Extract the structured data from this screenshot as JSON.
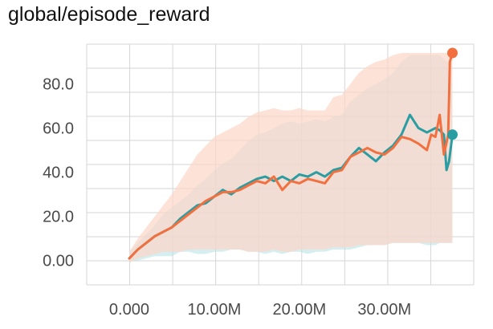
{
  "chart_data": {
    "type": "line",
    "title": "global/episode_reward",
    "xlabel": "",
    "ylabel": "",
    "xlim": [
      -5000000,
      40500000
    ],
    "ylim": [
      -11,
      98
    ],
    "x_ticks": [
      0,
      10000000,
      20000000,
      30000000
    ],
    "x_tick_labels": [
      "0.000",
      "10.00M",
      "20.00M",
      "30.00M"
    ],
    "y_ticks": [
      0,
      20,
      40,
      60,
      80
    ],
    "y_tick_labels": [
      "0.00",
      "20.0",
      "40.0",
      "60.0",
      "80.0"
    ],
    "grid": true,
    "colors": {
      "teal": "#2a9da3",
      "teal_light": "#b2e2e6",
      "orange": "#f2703f",
      "orange_light": "#fcd5c8"
    },
    "series": [
      {
        "color": "#2a9da3",
        "band_color": "#b2e2e6",
        "x": [
          0,
          500000,
          1000000,
          2000000,
          3000000,
          4000000,
          5000000,
          6000000,
          7000000,
          8000000,
          9000000,
          10000000,
          11000000,
          12000000,
          13000000,
          14000000,
          15000000,
          16000000,
          17000000,
          18000000,
          19000000,
          20000000,
          21000000,
          22000000,
          23000000,
          24000000,
          25000000,
          26000000,
          27000000,
          28000000,
          29000000,
          30000000,
          31000000,
          32000000,
          33000000,
          34000000,
          35000000,
          36000000,
          36500000,
          37000000,
          37300000,
          37600000,
          38000000
        ],
        "y": [
          1,
          3,
          5,
          8,
          11,
          13,
          15,
          19,
          22,
          25,
          26,
          29,
          32,
          30,
          33,
          35,
          37,
          38,
          36,
          38,
          36,
          39,
          38,
          40,
          38,
          41,
          42,
          47,
          51,
          48,
          45,
          49,
          52,
          57,
          66,
          60,
          58,
          60,
          59,
          57,
          41,
          45,
          57
        ],
        "band_low": [
          -1,
          0,
          0,
          1,
          2,
          2,
          2,
          4,
          4,
          3,
          3,
          4,
          4,
          5,
          5,
          4,
          4,
          3,
          4,
          3,
          4,
          4,
          3,
          4,
          4,
          5,
          5,
          5,
          6,
          7,
          7,
          7,
          8,
          8,
          8,
          8,
          7,
          7,
          8,
          8,
          8,
          8,
          8
        ],
        "band_high": [
          4,
          6,
          8,
          12,
          16,
          21,
          24,
          27,
          30,
          34,
          37,
          41,
          44,
          46,
          50,
          54,
          57,
          58,
          60,
          62,
          63,
          62,
          63,
          64,
          63,
          65,
          66,
          72,
          75,
          78,
          80,
          82,
          85,
          90,
          93,
          93,
          93,
          93,
          93,
          91,
          90,
          90,
          80
        ]
      },
      {
        "color": "#f2703f",
        "band_color": "#fcd5c8",
        "x": [
          0,
          500000,
          1000000,
          2000000,
          3000000,
          4000000,
          5000000,
          6000000,
          7000000,
          8000000,
          9000000,
          10000000,
          11000000,
          12000000,
          13000000,
          14000000,
          15000000,
          16000000,
          17000000,
          18000000,
          19000000,
          20000000,
          21000000,
          22000000,
          23000000,
          24000000,
          25000000,
          26000000,
          27000000,
          28000000,
          29000000,
          30000000,
          31000000,
          32000000,
          33000000,
          34000000,
          35000000,
          35500000,
          36000000,
          36500000,
          37000000,
          37500000,
          37700000,
          38000000
        ],
        "y": [
          1,
          3,
          5,
          8,
          11,
          13,
          15,
          18,
          21,
          24,
          27,
          29,
          31,
          31,
          32,
          34,
          36,
          35,
          38,
          32,
          36,
          35,
          37,
          36,
          35,
          40,
          41,
          47,
          49,
          51,
          49,
          48,
          51,
          56,
          55,
          53,
          50,
          57,
          56,
          66,
          48,
          57,
          90,
          94
        ],
        "band_low": [
          -1,
          0,
          1,
          2,
          3,
          4,
          4,
          4,
          5,
          5,
          5,
          5,
          5,
          5,
          5,
          4,
          4,
          4,
          5,
          4,
          4,
          5,
          5,
          5,
          5,
          6,
          6,
          6,
          7,
          7,
          7,
          7,
          8,
          8,
          8,
          8,
          8,
          8,
          8,
          8,
          8,
          8,
          8,
          8
        ],
        "band_high": [
          4,
          7,
          10,
          15,
          20,
          25,
          30,
          36,
          42,
          48,
          52,
          56,
          58,
          60,
          62,
          65,
          67,
          68,
          69,
          68,
          68,
          69,
          68,
          68,
          68,
          74,
          75,
          80,
          85,
          88,
          90,
          91,
          93,
          94,
          94,
          94,
          94,
          94,
          94,
          94,
          94,
          94,
          94,
          94
        ]
      }
    ]
  }
}
